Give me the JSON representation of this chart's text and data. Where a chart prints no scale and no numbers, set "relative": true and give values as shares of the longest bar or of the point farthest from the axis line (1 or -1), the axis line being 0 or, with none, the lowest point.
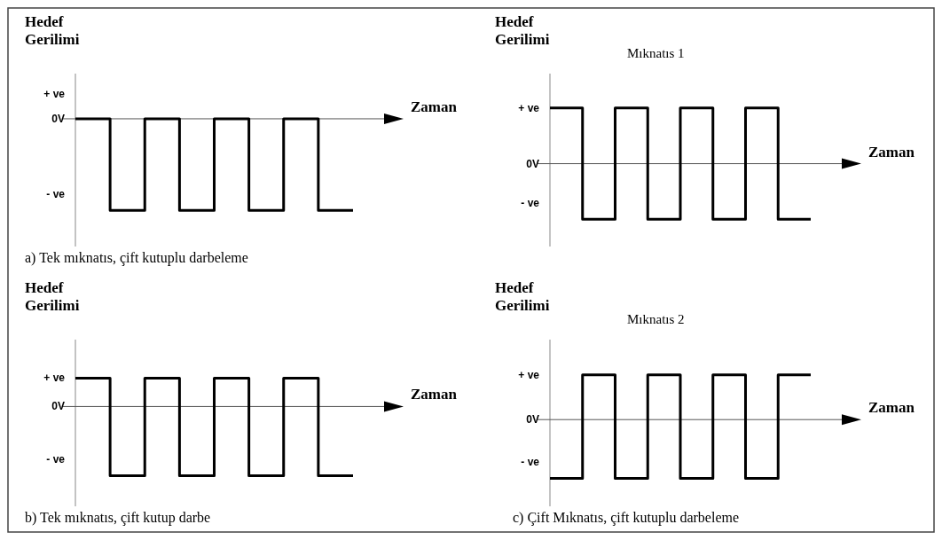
{
  "chart_data": [
    {
      "type": "step",
      "relative": true,
      "ylabel": "Hedef Gerilimi",
      "xlabel": "Zaman",
      "categories": [
        null,
        null,
        null,
        null,
        null,
        null,
        null,
        null,
        null
      ],
      "series": [
        {
          "color": "#000000",
          "values": [
            0,
            -1,
            0,
            -1,
            0,
            -1,
            0,
            -1,
            -1
          ]
        }
      ],
      "annotations": [
        "+ ve",
        "0V",
        "- ve",
        "a) Tek mıknatıs, çift kutuplu darbeleme"
      ]
    },
    {
      "type": "step",
      "relative": true,
      "title": "Mıknatıs 1",
      "ylabel": "Hedef Gerilimi",
      "xlabel": "Zaman",
      "categories": [
        null,
        null,
        null,
        null,
        null,
        null,
        null,
        null,
        null
      ],
      "series": [
        {
          "color": "#000000",
          "values": [
            1,
            -1,
            1,
            -1,
            1,
            -1,
            1,
            -1,
            -1
          ]
        }
      ],
      "annotations": [
        "+ ve",
        "0V",
        "- ve"
      ]
    },
    {
      "type": "step",
      "relative": true,
      "ylabel": "Hedef Gerilimi",
      "xlabel": "Zaman",
      "categories": [
        null,
        null,
        null,
        null,
        null,
        null,
        null,
        null,
        null
      ],
      "series": [
        {
          "color": "#000000",
          "values": [
            0.41,
            -1,
            0.41,
            -1,
            0.41,
            -1,
            0.41,
            -1,
            -1
          ]
        }
      ],
      "annotations": [
        "+ ve",
        "0V",
        "- ve",
        "b) Tek mıknatıs, çift kutup darbe"
      ]
    },
    {
      "type": "step",
      "relative": true,
      "title": "Mıknatıs 2",
      "ylabel": "Hedef Gerilimi",
      "xlabel": "Zaman",
      "categories": [
        null,
        null,
        null,
        null,
        null,
        null,
        null,
        null,
        null
      ],
      "series": [
        {
          "color": "#000000",
          "values": [
            -1,
            0.76,
            -1,
            0.76,
            -1,
            0.76,
            -1,
            0.76,
            0.76
          ]
        }
      ],
      "annotations": [
        "+ ve",
        "0V",
        "- ve",
        "c) Çift Mıknatıs, çift kutuplu darbeleme"
      ]
    }
  ]
}
